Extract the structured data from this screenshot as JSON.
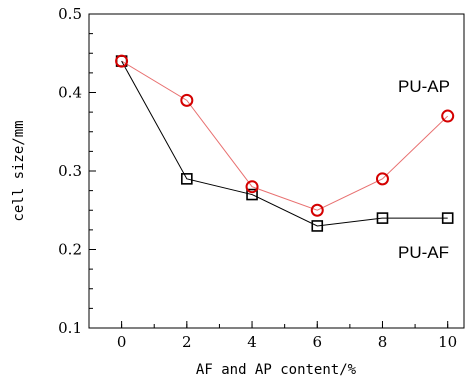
{
  "chart_data": {
    "type": "line",
    "xlabel": "AF and AP content/%",
    "ylabel": "cell size/mm",
    "xlim": [
      -1,
      10.5
    ],
    "ylim": [
      0.1,
      0.5
    ],
    "x_ticks": [
      "0",
      "2",
      "4",
      "6",
      "8",
      "10"
    ],
    "y_ticks": [
      "0.1",
      "0.2",
      "0.3",
      "0.4",
      "0.5"
    ],
    "grid": false,
    "series": [
      {
        "name": "PU-AP",
        "marker": "circle",
        "line_color": "#e87070",
        "marker_color": "#d40000",
        "x": [
          0,
          2,
          4,
          6,
          8,
          10
        ],
        "y": [
          0.44,
          0.39,
          0.28,
          0.25,
          0.29,
          0.37
        ]
      },
      {
        "name": "PU-AF",
        "marker": "square",
        "line_color": "#000000",
        "marker_color": "#000000",
        "x": [
          0,
          2,
          4,
          6,
          8,
          10
        ],
        "y": [
          0.44,
          0.29,
          0.27,
          0.23,
          0.24,
          0.24
        ]
      }
    ]
  }
}
